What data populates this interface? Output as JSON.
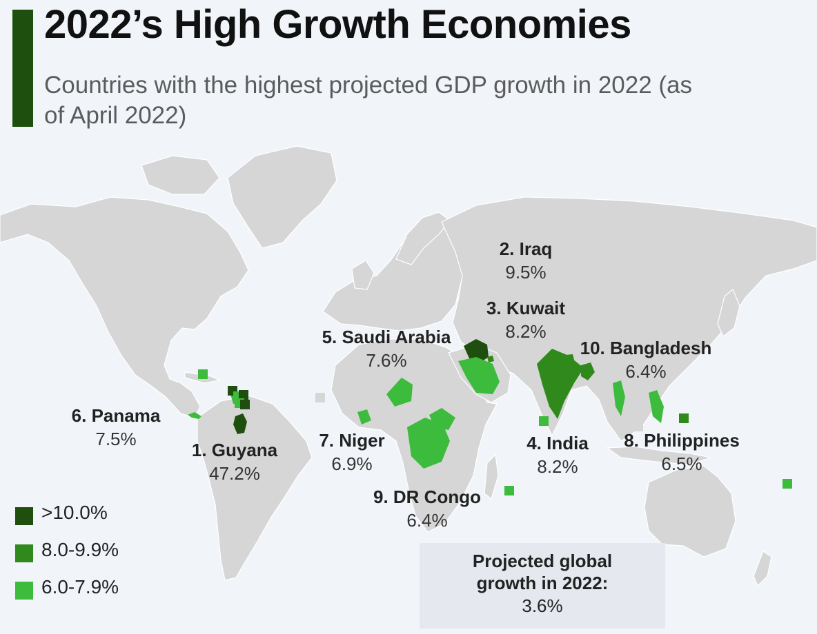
{
  "title": "2022’s High Growth Economies",
  "subtitle": "Countries with the highest projected GDP growth in 2022 (as of April 2022)",
  "colors": {
    "tier_high": "#1e4f0e",
    "tier_mid": "#2f8a1b",
    "tier_low": "#3dbb3d",
    "land": "#d6d6d6",
    "background": "#f1f5fa",
    "accent": "#1e4f0e"
  },
  "legend": [
    {
      "label": ">10.0%",
      "color": "#1e4f0e"
    },
    {
      "label": "8.0-9.9%",
      "color": "#2f8a1b"
    },
    {
      "label": "6.0-7.9%",
      "color": "#3dbb3d"
    }
  ],
  "countries": [
    {
      "name": "1. Guyana",
      "value": "47.2%"
    },
    {
      "name": "2. Iraq",
      "value": "9.5%"
    },
    {
      "name": "3. Kuwait",
      "value": "8.2%"
    },
    {
      "name": "4. India",
      "value": "8.2%"
    },
    {
      "name": "5. Saudi Arabia",
      "value": "7.6%"
    },
    {
      "name": "6. Panama",
      "value": "7.5%"
    },
    {
      "name": "7. Niger",
      "value": "6.9%"
    },
    {
      "name": "8. Philippines",
      "value": "6.5%"
    },
    {
      "name": "9. DR Congo",
      "value": "6.4%"
    },
    {
      "name": "10. Bangladesh",
      "value": "6.4%"
    }
  ],
  "global": {
    "label": "Projected global growth in 2022:",
    "value": "3.6%"
  }
}
